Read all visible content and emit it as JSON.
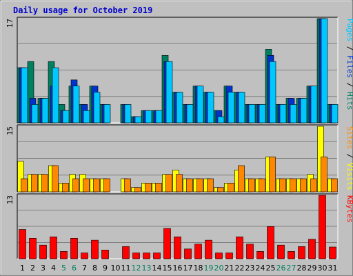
{
  "chart_data": {
    "type": "bar",
    "title": "Daily usage for October 2019",
    "days": [
      "1",
      "2",
      "3",
      "4",
      "5",
      "6",
      "7",
      "8",
      "9",
      "10",
      "11",
      "12",
      "13",
      "14",
      "15",
      "16",
      "17",
      "18",
      "19",
      "20",
      "21",
      "22",
      "23",
      "24",
      "25",
      "26",
      "27",
      "28",
      "29",
      "30",
      "31"
    ],
    "weekend_days": [
      "5",
      "6",
      "12",
      "13",
      "19",
      "20",
      "26",
      "27"
    ],
    "panels": [
      {
        "id": "hits-files-pages",
        "ymax_label": "17",
        "ymax": 17,
        "legend": [
          {
            "name": "Pages",
            "color": "#00c8ff"
          },
          {
            "name": "Files",
            "color": "#0033cc"
          },
          {
            "name": "Hits",
            "color": "#008060"
          }
        ],
        "series": [
          {
            "name": "Hits",
            "color": "#008060",
            "values": [
              9,
              10,
              4,
              10,
              3,
              6,
              3,
              6,
              3,
              0,
              3,
              1,
              2,
              2,
              11,
              5,
              3,
              6,
              5,
              2,
              6,
              5,
              3,
              3,
              12,
              3,
              4,
              4,
              6,
              17,
              3
            ]
          },
          {
            "name": "Files",
            "color": "#0033cc",
            "values": [
              9,
              4,
              4,
              6,
              2,
              7,
              3,
              6,
              3,
              0,
              3,
              1,
              2,
              2,
              10,
              5,
              3,
              6,
              5,
              2,
              6,
              5,
              3,
              3,
              11,
              3,
              4,
              4,
              6,
              17,
              3
            ]
          },
          {
            "name": "Pages",
            "color": "#00c8ff",
            "values": [
              9,
              3,
              4,
              9,
              2,
              6,
              2,
              5,
              3,
              0,
              3,
              1,
              2,
              2,
              10,
              5,
              3,
              6,
              5,
              1,
              5,
              5,
              3,
              3,
              10,
              3,
              3,
              4,
              6,
              17,
              3
            ]
          }
        ]
      },
      {
        "id": "visits-sites",
        "ymax_label": "15",
        "ymax": 15,
        "legend": [
          {
            "name": "Sites",
            "color": "#ff8800"
          },
          {
            "name": "Visits",
            "color": "#ffff00"
          }
        ],
        "series": [
          {
            "name": "Visits",
            "color": "#ffff00",
            "values": [
              7,
              4,
              4,
              6,
              2,
              4,
              4,
              3,
              3,
              0,
              3,
              1,
              2,
              2,
              4,
              5,
              3,
              3,
              3,
              1,
              2,
              5,
              3,
              3,
              8,
              3,
              3,
              3,
              4,
              15,
              3
            ]
          },
          {
            "name": "Sites",
            "color": "#ff8800",
            "values": [
              3,
              4,
              4,
              6,
              2,
              3,
              3,
              3,
              3,
              0,
              3,
              1,
              2,
              2,
              4,
              4,
              3,
              3,
              3,
              1,
              2,
              6,
              3,
              3,
              8,
              3,
              3,
              3,
              3,
              8,
              3
            ]
          }
        ]
      },
      {
        "id": "kbytes",
        "ymax_label": "13",
        "ymax": 13,
        "legend": [
          {
            "name": "KBytes",
            "color": "#ff0000"
          }
        ],
        "series": [
          {
            "name": "KBytes",
            "color": "#ff0000",
            "values": [
              6,
              4.2,
              2.8,
              4.5,
              1.5,
              4.2,
              1.2,
              3.8,
              1.8,
              0,
              2.5,
              1.2,
              1.2,
              1.2,
              6.2,
              4.5,
              2,
              3,
              3.8,
              1.2,
              1.2,
              4.5,
              3,
              1.5,
              6.6,
              2.8,
              1.5,
              2.5,
              4,
              13,
              2.4
            ]
          }
        ]
      }
    ]
  }
}
